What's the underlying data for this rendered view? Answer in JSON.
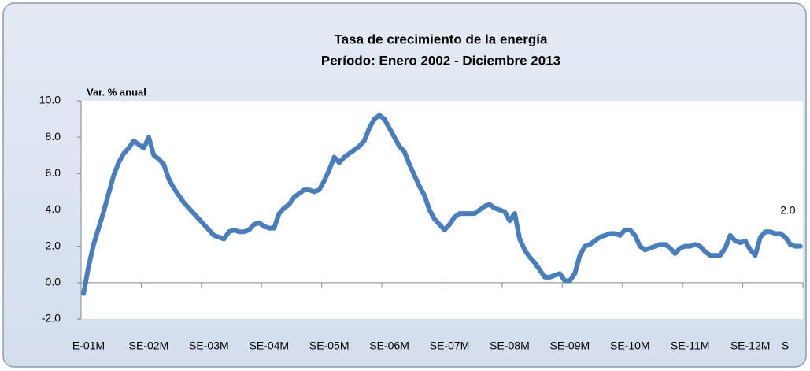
{
  "chart_data": {
    "type": "line",
    "title": "Tasa de crecimiento de la energía",
    "subtitle": "Período:  Enero 2002 -  Diciembre 2013",
    "y_label": "Var. % anual",
    "color": "#4a7ebb",
    "categories": [
      null,
      "E-01M",
      null,
      null,
      null,
      null,
      null,
      null,
      null,
      null,
      null,
      null,
      null,
      "SE-02M",
      null,
      null,
      null,
      null,
      null,
      null,
      null,
      null,
      null,
      null,
      null,
      "SE-03M",
      null,
      null,
      null,
      null,
      null,
      null,
      null,
      null,
      null,
      null,
      null,
      "SE-04M",
      null,
      null,
      null,
      null,
      null,
      null,
      null,
      null,
      null,
      null,
      null,
      "SE-05M",
      null,
      null,
      null,
      null,
      null,
      null,
      null,
      null,
      null,
      null,
      null,
      "SE-06M",
      null,
      null,
      null,
      null,
      null,
      null,
      null,
      null,
      null,
      null,
      null,
      "SE-07M",
      null,
      null,
      null,
      null,
      null,
      null,
      null,
      null,
      null,
      null,
      null,
      "SE-08M",
      null,
      null,
      null,
      null,
      null,
      null,
      null,
      null,
      null,
      null,
      null,
      "SE-09M",
      null,
      null,
      null,
      null,
      null,
      null,
      null,
      null,
      null,
      null,
      null,
      "SE-10M",
      null,
      null,
      null,
      null,
      null,
      null,
      null,
      null,
      null,
      null,
      null,
      "SE-11M",
      null,
      null,
      null,
      null,
      null,
      null,
      null,
      null,
      null,
      null,
      null,
      "SE-12M",
      null,
      null,
      null,
      null,
      null,
      null,
      "S",
      null,
      null,
      null
    ],
    "values": [
      -0.6,
      0.9,
      2.1,
      3.0,
      3.9,
      4.9,
      5.9,
      6.6,
      7.1,
      7.4,
      7.8,
      7.6,
      7.4,
      8.0,
      7.0,
      6.8,
      6.5,
      5.7,
      5.2,
      4.8,
      4.4,
      4.1,
      3.8,
      3.5,
      3.2,
      2.9,
      2.6,
      2.5,
      2.4,
      2.8,
      2.9,
      2.8,
      2.8,
      2.9,
      3.2,
      3.3,
      3.1,
      3.0,
      3.0,
      3.8,
      4.1,
      4.3,
      4.7,
      4.9,
      5.1,
      5.1,
      5.0,
      5.1,
      5.6,
      6.2,
      6.9,
      6.6,
      6.9,
      7.1,
      7.3,
      7.5,
      7.8,
      8.5,
      9.0,
      9.2,
      9.0,
      8.5,
      8.0,
      7.5,
      7.2,
      6.5,
      5.9,
      5.3,
      4.8,
      4.0,
      3.5,
      3.2,
      2.9,
      3.2,
      3.6,
      3.8,
      3.8,
      3.8,
      3.8,
      4.0,
      4.2,
      4.3,
      4.1,
      4.0,
      3.9,
      3.4,
      3.8,
      2.4,
      1.8,
      1.4,
      1.1,
      0.7,
      0.3,
      0.3,
      0.4,
      0.5,
      0.1,
      0.1,
      0.5,
      1.5,
      2.0,
      2.1,
      2.3,
      2.5,
      2.6,
      2.7,
      2.7,
      2.6,
      2.9,
      2.9,
      2.6,
      2.0,
      1.8,
      1.9,
      2.0,
      2.1,
      2.1,
      1.9,
      1.6,
      1.9,
      2.0,
      2.0,
      2.1,
      2.0,
      1.7,
      1.5,
      1.5,
      1.5,
      1.9,
      2.6,
      2.3,
      2.2,
      2.3,
      1.8,
      1.5,
      2.5,
      2.8,
      2.8,
      2.7,
      2.7,
      2.5,
      2.1,
      2.0,
      2.0
    ],
    "value_labels": [
      null,
      null,
      null,
      null,
      null,
      null,
      null,
      null,
      null,
      null,
      null,
      null,
      null,
      null,
      null,
      null,
      null,
      null,
      null,
      null,
      null,
      null,
      null,
      null,
      null,
      null,
      null,
      null,
      null,
      null,
      null,
      null,
      null,
      null,
      null,
      null,
      null,
      null,
      null,
      null,
      null,
      null,
      null,
      null,
      null,
      null,
      null,
      null,
      null,
      null,
      null,
      null,
      null,
      null,
      null,
      null,
      null,
      null,
      null,
      null,
      null,
      null,
      null,
      null,
      null,
      null,
      null,
      null,
      null,
      null,
      null,
      null,
      null,
      null,
      null,
      null,
      null,
      null,
      null,
      null,
      null,
      null,
      null,
      null,
      null,
      null,
      null,
      null,
      null,
      null,
      null,
      null,
      null,
      null,
      null,
      null,
      null,
      null,
      null,
      null,
      null,
      null,
      null,
      null,
      null,
      null,
      null,
      null,
      null,
      null,
      null,
      null,
      null,
      null,
      null,
      null,
      null,
      null,
      null,
      null,
      null,
      null,
      null,
      null,
      null,
      null,
      null,
      null,
      null,
      null,
      null,
      null,
      null,
      null,
      null,
      null,
      null,
      null,
      null,
      null,
      null,
      null,
      null,
      "2.0"
    ],
    "ylim": [
      -2,
      10
    ],
    "yticks": [
      {
        "value": -2,
        "label": "-2.0"
      },
      {
        "value": 0,
        "label": "0.0"
      },
      {
        "value": 2,
        "label": "2.0"
      },
      {
        "value": 4,
        "label": "4.0"
      },
      {
        "value": 6,
        "label": "6.0"
      },
      {
        "value": 8,
        "label": "8.0"
      },
      {
        "value": 10,
        "label": "10.0"
      }
    ],
    "grid": false
  }
}
